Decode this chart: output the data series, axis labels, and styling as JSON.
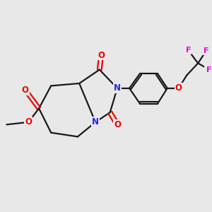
{
  "bg_color": "#e8e8e8",
  "bond_color": "#1a1a1a",
  "bond_width": 1.6,
  "N_color": "#2222ff",
  "O_color": "#ee0000",
  "F_color": "#ee00ee",
  "font_size_atom": 8.5,
  "font_size_F": 8.0,
  "figsize": [
    3.0,
    3.0
  ],
  "dpi": 100,
  "xlim": [
    -4.0,
    5.0
  ],
  "ylim": [
    -3.2,
    3.2
  ]
}
